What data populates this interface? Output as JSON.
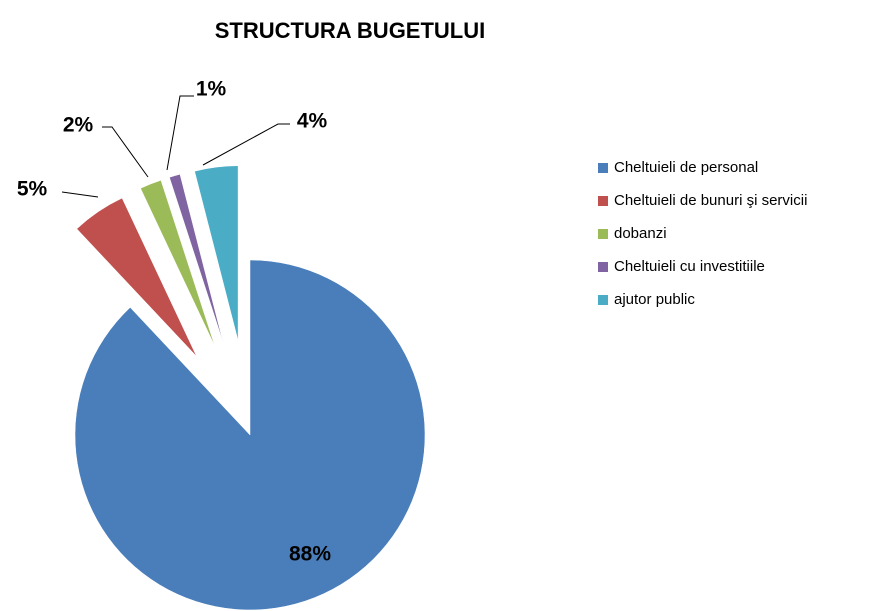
{
  "chart_data": {
    "type": "pie",
    "title": "STRUCTURA BUGETULUI",
    "categories": [
      "Cheltuieli de personal",
      "Cheltuieli de bunuri şi servicii",
      "dobanzi",
      "Cheltuieli cu investitiile",
      "ajutor public"
    ],
    "values": [
      88,
      5,
      2,
      1,
      4
    ],
    "value_labels": [
      "88%",
      "5%",
      "2%",
      "1%",
      "4%"
    ],
    "colors": [
      "#4a7ebb",
      "#c0504d",
      "#9bbb59",
      "#8064a2",
      "#4bacc6"
    ],
    "legend": "right"
  }
}
